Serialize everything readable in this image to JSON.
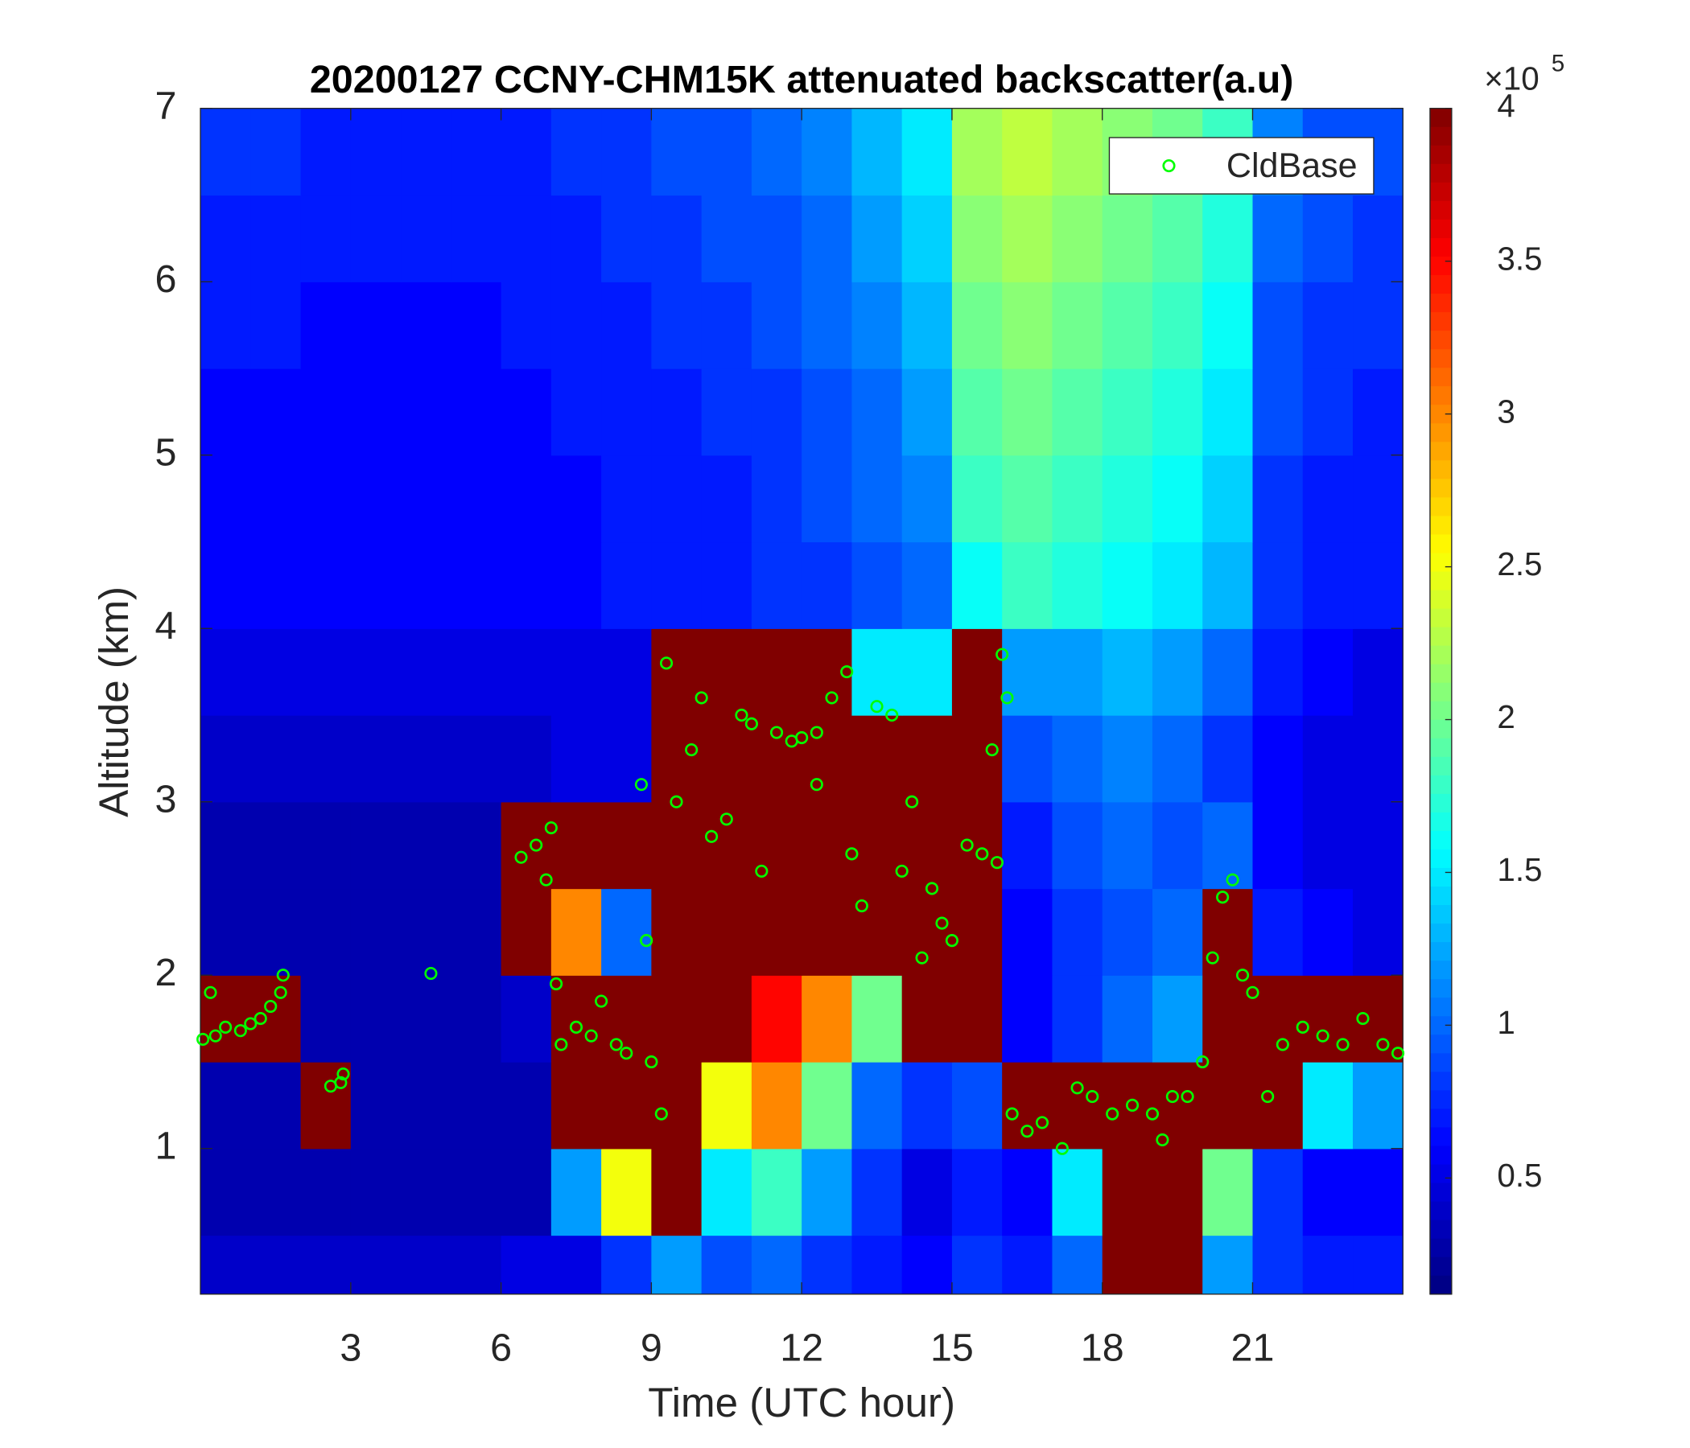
{
  "chart_data": {
    "type": "heatmap",
    "title": "20200127 CCNY-CHM15K attenuated backscatter(a.u)",
    "xlabel": "Time (UTC hour)",
    "ylabel": "Altitude (km)",
    "xlim": [
      0,
      24
    ],
    "xticks": [
      3,
      6,
      9,
      12,
      15,
      18,
      21
    ],
    "ylim": [
      0.16,
      7
    ],
    "yticks": [
      1,
      2,
      3,
      4,
      5,
      6,
      7
    ],
    "clim": [
      0.12,
      4
    ],
    "cticks": [
      0.5,
      1,
      1.5,
      2,
      2.5,
      3,
      3.5,
      4
    ],
    "colorbar_multiplier": "×10",
    "colorbar_exponent": "5",
    "colormap": "jet",
    "x_bins": [
      0,
      1,
      2,
      3,
      4,
      5,
      6,
      7,
      8,
      9,
      10,
      11,
      12,
      13,
      14,
      15,
      16,
      17,
      18,
      19,
      20,
      21,
      22,
      23,
      24
    ],
    "y_bins": [
      0,
      0.5,
      1,
      1.5,
      2,
      2.5,
      3,
      3.5,
      4,
      4.5,
      5,
      5.5,
      6,
      6.5,
      7
    ],
    "z": [
      [
        0.4,
        0.4,
        0.4,
        0.4,
        0.4,
        0.4,
        0.5,
        0.5,
        0.8,
        1.2,
        0.9,
        1.0,
        0.8,
        0.7,
        0.6,
        0.8,
        0.7,
        1.0,
        4,
        4,
        1.2,
        0.8,
        0.7,
        0.7
      ],
      [
        0.3,
        0.3,
        0.3,
        0.3,
        0.3,
        0.3,
        0.3,
        1.2,
        2.5,
        4,
        1.5,
        1.8,
        1.2,
        0.8,
        0.5,
        0.7,
        0.6,
        1.5,
        4,
        4,
        2,
        0.8,
        0.6,
        0.6
      ],
      [
        0.3,
        0.3,
        4,
        0.3,
        0.3,
        0.3,
        0.3,
        4,
        4,
        4,
        2.5,
        3,
        2,
        1,
        0.8,
        0.9,
        4,
        4,
        4,
        4,
        4,
        4,
        1.5,
        1.2
      ],
      [
        4,
        4,
        0.3,
        0.3,
        0.3,
        0.3,
        0.4,
        4,
        4,
        4,
        4,
        3.5,
        3,
        2,
        4,
        4,
        0.6,
        0.8,
        1,
        1.2,
        4,
        4,
        4,
        4
      ],
      [
        0.3,
        0.3,
        0.3,
        0.3,
        0.3,
        0.3,
        4,
        3,
        1,
        4,
        4,
        4,
        4,
        4,
        4,
        4,
        0.6,
        0.8,
        0.9,
        1,
        4,
        0.7,
        0.6,
        0.5
      ],
      [
        0.3,
        0.3,
        0.3,
        0.3,
        0.3,
        0.3,
        4,
        4,
        4,
        4,
        4,
        4,
        4,
        4,
        4,
        4,
        0.7,
        0.9,
        1,
        0.9,
        1,
        0.6,
        0.5,
        0.5
      ],
      [
        0.4,
        0.4,
        0.4,
        0.4,
        0.4,
        0.4,
        0.4,
        0.5,
        0.5,
        4,
        4,
        4,
        4,
        4,
        4,
        4,
        0.9,
        1,
        1.1,
        1,
        0.8,
        0.6,
        0.5,
        0.5
      ],
      [
        0.5,
        0.5,
        0.5,
        0.5,
        0.5,
        0.5,
        0.5,
        0.5,
        0.5,
        4,
        4,
        4,
        4,
        1.5,
        1.5,
        4,
        1.2,
        1.2,
        1.3,
        1.2,
        1,
        0.7,
        0.6,
        0.5
      ],
      [
        0.6,
        0.6,
        0.6,
        0.6,
        0.6,
        0.6,
        0.6,
        0.6,
        0.7,
        0.7,
        0.7,
        0.8,
        0.8,
        0.9,
        1.0,
        1.6,
        1.8,
        1.7,
        1.6,
        1.5,
        1.3,
        0.8,
        0.7,
        0.7
      ],
      [
        0.6,
        0.6,
        0.6,
        0.6,
        0.6,
        0.6,
        0.6,
        0.6,
        0.7,
        0.7,
        0.7,
        0.8,
        0.9,
        1.0,
        1.1,
        1.8,
        1.9,
        1.8,
        1.7,
        1.6,
        1.4,
        0.8,
        0.7,
        0.7
      ],
      [
        0.6,
        0.6,
        0.6,
        0.6,
        0.6,
        0.6,
        0.6,
        0.7,
        0.7,
        0.7,
        0.8,
        0.8,
        0.9,
        1.0,
        1.2,
        1.9,
        2.0,
        1.9,
        1.8,
        1.7,
        1.5,
        0.9,
        0.8,
        0.7
      ],
      [
        0.7,
        0.7,
        0.6,
        0.6,
        0.6,
        0.6,
        0.7,
        0.7,
        0.7,
        0.8,
        0.8,
        0.9,
        1.0,
        1.1,
        1.3,
        2.0,
        2.1,
        2.0,
        1.9,
        1.8,
        1.6,
        0.9,
        0.8,
        0.8
      ],
      [
        0.7,
        0.7,
        0.7,
        0.7,
        0.7,
        0.7,
        0.7,
        0.7,
        0.8,
        0.8,
        0.9,
        0.9,
        1.0,
        1.2,
        1.4,
        2.1,
        2.2,
        2.1,
        2.0,
        1.9,
        1.7,
        1.0,
        0.9,
        0.8
      ],
      [
        0.8,
        0.8,
        0.7,
        0.7,
        0.7,
        0.7,
        0.7,
        0.8,
        0.8,
        0.9,
        0.9,
        1.0,
        1.1,
        1.3,
        1.5,
        2.2,
        2.3,
        2.2,
        2.1,
        2.0,
        1.8,
        1.1,
        0.9,
        0.9
      ]
    ],
    "series": [
      {
        "name": "CldBase",
        "color": "#00ff00",
        "x": [
          0.05,
          0.2,
          0.3,
          0.5,
          0.8,
          1.0,
          1.2,
          1.4,
          1.6,
          1.65,
          2.6,
          2.8,
          2.85,
          4.6,
          6.4,
          6.7,
          7.0,
          6.9,
          7.1,
          7.2,
          7.5,
          7.8,
          8.0,
          8.3,
          8.5,
          8.8,
          8.9,
          9.0,
          9.2,
          9.3,
          9.5,
          9.8,
          10.0,
          10.2,
          10.5,
          10.8,
          11.0,
          11.2,
          11.5,
          11.8,
          12.0,
          12.3,
          12.3,
          12.6,
          12.9,
          13.0,
          13.2,
          13.5,
          13.8,
          14.0,
          14.2,
          14.4,
          14.6,
          14.8,
          15.0,
          15.3,
          15.6,
          15.8,
          15.9,
          16.0,
          16.1,
          16.2,
          16.5,
          16.8,
          17.2,
          17.5,
          17.8,
          18.2,
          18.6,
          19.0,
          19.2,
          19.4,
          19.7,
          20.0,
          20.2,
          20.4,
          20.6,
          20.8,
          21.0,
          21.3,
          21.6,
          22.0,
          22.4,
          22.8,
          23.2,
          23.6,
          23.9
        ],
        "values": [
          1.63,
          1.9,
          1.65,
          1.7,
          1.68,
          1.72,
          1.75,
          1.82,
          1.9,
          2.0,
          1.36,
          1.38,
          1.43,
          2.01,
          2.68,
          2.75,
          2.85,
          2.55,
          1.95,
          1.6,
          1.7,
          1.65,
          1.85,
          1.6,
          1.55,
          3.1,
          2.2,
          1.5,
          1.2,
          3.8,
          3.0,
          3.3,
          3.6,
          2.8,
          2.9,
          3.5,
          3.45,
          2.6,
          3.4,
          3.35,
          3.37,
          3.4,
          3.1,
          3.6,
          3.75,
          2.7,
          2.4,
          3.55,
          3.5,
          2.6,
          3.0,
          2.1,
          2.5,
          2.3,
          2.2,
          2.75,
          2.7,
          3.3,
          2.65,
          3.85,
          3.6,
          1.2,
          1.1,
          1.15,
          1.0,
          1.35,
          1.3,
          1.2,
          1.25,
          1.2,
          1.05,
          1.3,
          1.3,
          1.5,
          2.1,
          2.45,
          2.55,
          2.0,
          1.9,
          1.3,
          1.6,
          1.7,
          1.65,
          1.6,
          1.75,
          1.6,
          1.55
        ]
      }
    ],
    "legend": "northeast"
  }
}
